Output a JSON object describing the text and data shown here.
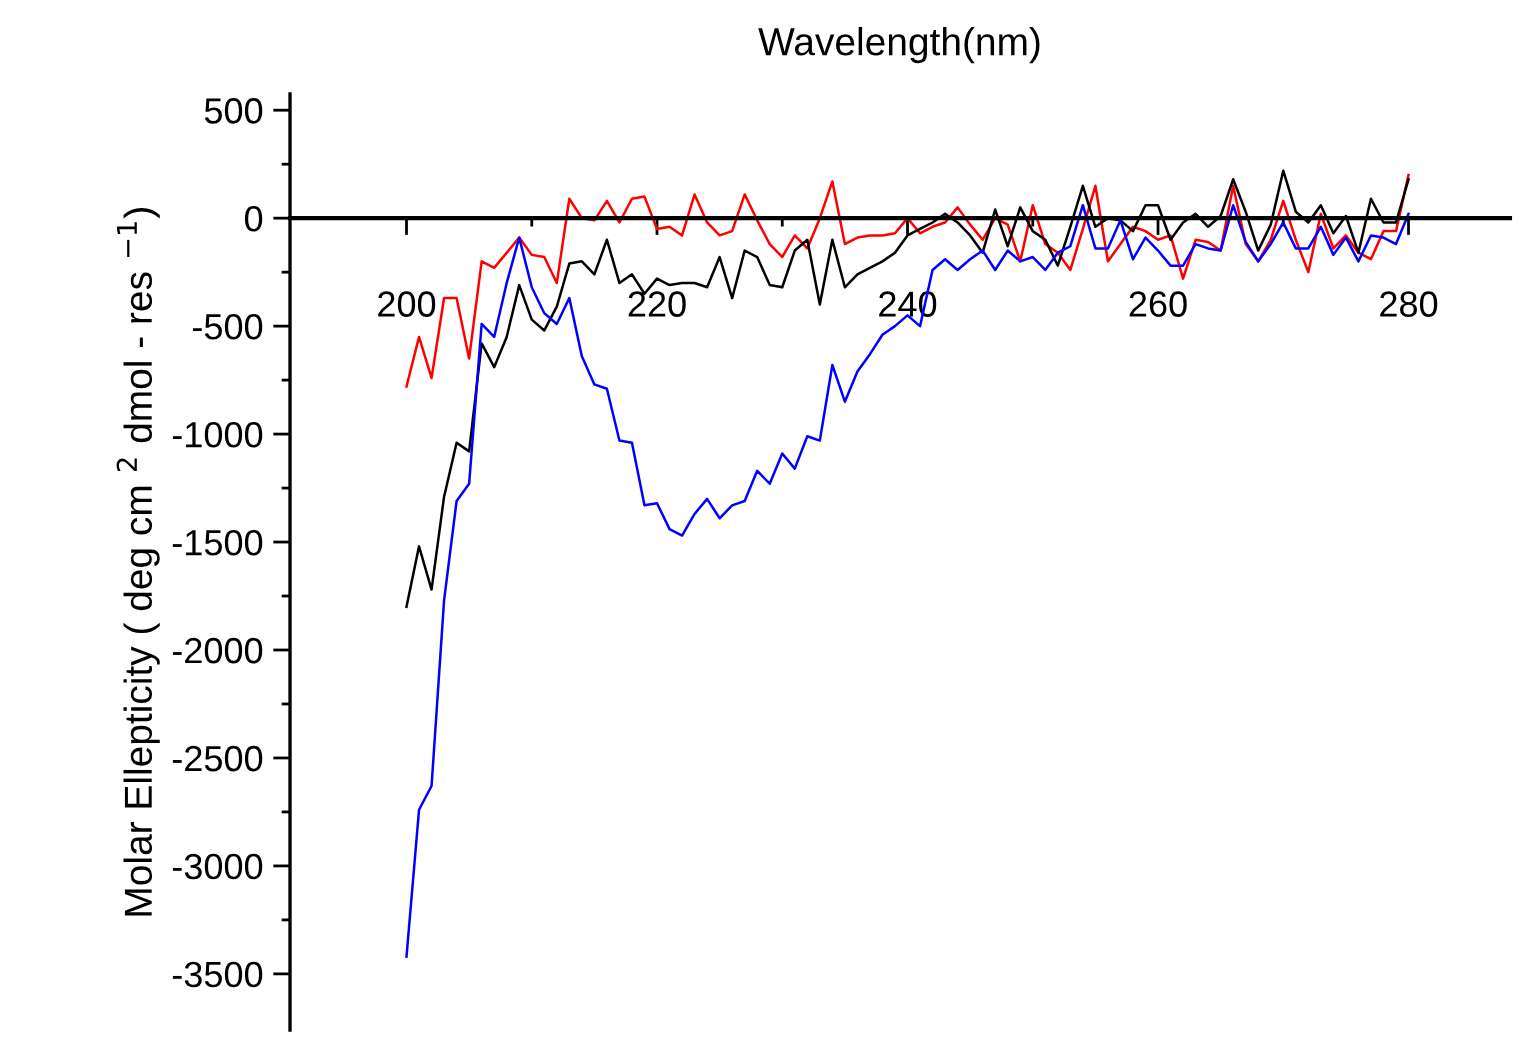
{
  "chart_data": {
    "type": "line",
    "xlabel": "Wavelength(nm)",
    "ylabel": "Molar Ellepticity ( deg cm $^{2}$ dmol - res $^{−1}$)",
    "x": [
      200,
      201,
      202,
      203,
      204,
      205,
      206,
      207,
      208,
      209,
      210,
      211,
      212,
      213,
      214,
      215,
      216,
      217,
      218,
      219,
      220,
      221,
      222,
      223,
      224,
      225,
      226,
      227,
      228,
      229,
      230,
      231,
      232,
      233,
      234,
      235,
      236,
      237,
      238,
      239,
      240,
      241,
      242,
      243,
      244,
      245,
      246,
      247,
      248,
      249,
      250,
      251,
      252,
      253,
      254,
      255,
      256,
      257,
      258,
      259,
      260,
      261,
      262,
      263,
      264,
      265,
      266,
      267,
      268,
      269,
      270,
      271,
      272,
      273,
      274,
      275,
      276,
      277,
      278,
      279,
      280
    ],
    "series": [
      {
        "color": "#ff0000",
        "values": [
          -780,
          -550,
          -740,
          -370,
          -370,
          -650,
          -200,
          -230,
          -160,
          -90,
          -170,
          -180,
          -300,
          90,
          0,
          -10,
          80,
          -20,
          90,
          100,
          -50,
          -40,
          -80,
          110,
          -20,
          -80,
          -60,
          110,
          -10,
          -120,
          -180,
          -80,
          -140,
          0,
          170,
          -120,
          -90,
          -80,
          -80,
          -70,
          0,
          -70,
          -40,
          -20,
          50,
          -30,
          -100,
          0,
          -30,
          -200,
          60,
          -120,
          -160,
          -240,
          -50,
          150,
          -200,
          -120,
          -40,
          -60,
          -100,
          -80,
          -280,
          -100,
          -110,
          -150,
          150,
          -120,
          -200,
          -100,
          80,
          -100,
          -250,
          20,
          -140,
          -80,
          -160,
          -190,
          -60,
          -60,
          200
        ]
      },
      {
        "color": "#000000",
        "values": [
          -1800,
          -1520,
          -1720,
          -1290,
          -1040,
          -1080,
          -580,
          -690,
          -550,
          -310,
          -470,
          -520,
          -410,
          -210,
          -200,
          -260,
          -100,
          -300,
          -260,
          -350,
          -280,
          -310,
          -300,
          -300,
          -320,
          -180,
          -370,
          -150,
          -180,
          -310,
          -320,
          -150,
          -100,
          -400,
          -100,
          -320,
          -260,
          -230,
          -200,
          -160,
          -80,
          -50,
          -20,
          20,
          -20,
          -80,
          -160,
          40,
          -130,
          50,
          -60,
          -100,
          -220,
          -40,
          150,
          -40,
          0,
          -10,
          -60,
          60,
          60,
          -100,
          -20,
          20,
          -40,
          10,
          180,
          30,
          -150,
          -30,
          220,
          30,
          -20,
          60,
          -70,
          10,
          -160,
          90,
          -20,
          -20,
          180
        ]
      },
      {
        "color": "#0000ff",
        "values": [
          -3420,
          -2740,
          -2630,
          -1770,
          -1310,
          -1230,
          -490,
          -550,
          -300,
          -90,
          -320,
          -440,
          -490,
          -370,
          -640,
          -770,
          -790,
          -1030,
          -1040,
          -1330,
          -1320,
          -1440,
          -1470,
          -1370,
          -1300,
          -1390,
          -1330,
          -1310,
          -1170,
          -1230,
          -1090,
          -1160,
          -1010,
          -1030,
          -680,
          -850,
          -710,
          -630,
          -540,
          -500,
          -450,
          -500,
          -240,
          -190,
          -240,
          -190,
          -150,
          -240,
          -150,
          -200,
          -180,
          -240,
          -160,
          -130,
          60,
          -140,
          -140,
          -10,
          -190,
          -90,
          -150,
          -220,
          -220,
          -120,
          -140,
          -150,
          60,
          -110,
          -200,
          -120,
          -20,
          -140,
          -140,
          -40,
          -170,
          -90,
          -200,
          -80,
          -90,
          -120,
          20
        ]
      }
    ],
    "xlim": [
      190.7,
      288.1
    ],
    "xticks": [
      200,
      220,
      240,
      260,
      280
    ],
    "ylim": [
      -3760,
      575
    ],
    "yticks": [
      -3500,
      -3000,
      -2500,
      -2000,
      -1500,
      -1000,
      -500,
      0,
      500
    ],
    "grid": false,
    "legend": false,
    "marker": "none",
    "line_style": "solid"
  }
}
